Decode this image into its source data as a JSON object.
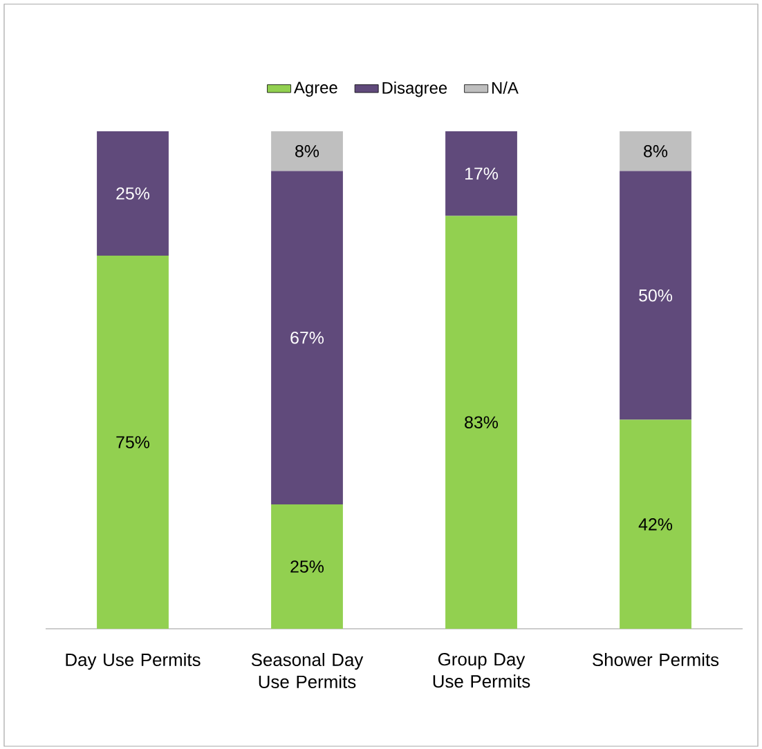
{
  "chart_data": {
    "type": "bar",
    "stacked": true,
    "legend": "top",
    "categories": [
      "Day Use Permits",
      "Seasonal Day Use Permits",
      "Group Day Use Permits",
      "Shower Permits"
    ],
    "series": [
      {
        "name": "Agree",
        "color": "#92d050",
        "values": [
          75,
          25,
          83,
          42
        ],
        "value_labels": [
          "75%",
          "25%",
          "83%",
          "42%"
        ]
      },
      {
        "name": "Disagree",
        "color": "#604a7b",
        "values": [
          25,
          67,
          17,
          50
        ],
        "value_labels": [
          "25%",
          "67%",
          "17%",
          "50%"
        ]
      },
      {
        "name": "N/A",
        "color": "#bfbfbf",
        "values": [
          null,
          8,
          null,
          8
        ],
        "value_labels": [
          null,
          "8%",
          null,
          "8%"
        ]
      }
    ]
  }
}
